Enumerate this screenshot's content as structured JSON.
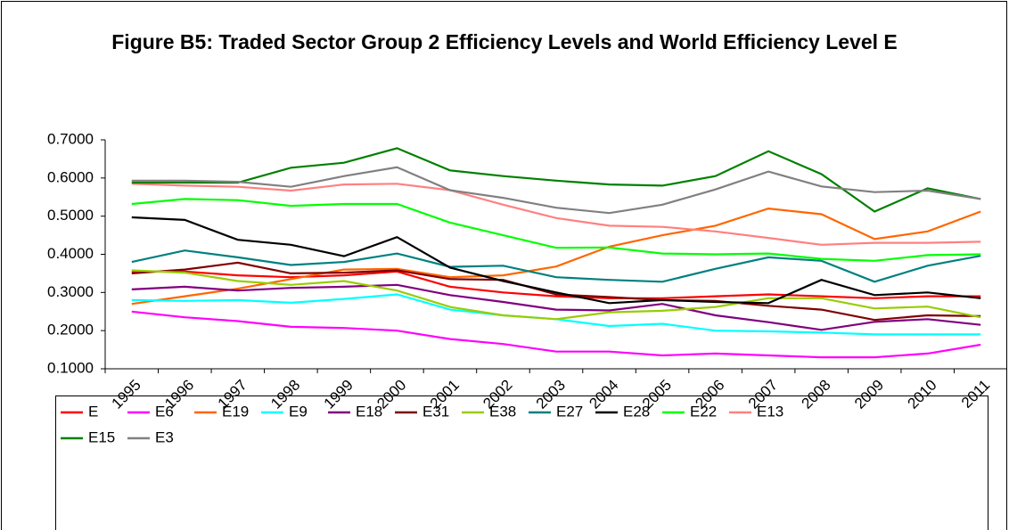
{
  "chart_data": {
    "type": "line",
    "title": "Figure B5: Traded Sector Group 2 Efficiency Levels and World Efficiency Level E",
    "categories": [
      "1995",
      "1996",
      "1997",
      "1998",
      "1999",
      "2000",
      "2001",
      "2002",
      "2003",
      "2004",
      "2005",
      "2006",
      "2007",
      "2008",
      "2009",
      "2010",
      "2011"
    ],
    "ylim": [
      0.1,
      0.7
    ],
    "yticks": [
      {
        "value": 0.1,
        "label": "0.1000"
      },
      {
        "value": 0.2,
        "label": "0.2000"
      },
      {
        "value": 0.3,
        "label": "0.3000"
      },
      {
        "value": 0.4,
        "label": "0.4000"
      },
      {
        "value": 0.5,
        "label": "0.5000"
      },
      {
        "value": 0.6,
        "label": "0.6000"
      },
      {
        "value": 0.7,
        "label": "0.7000"
      }
    ],
    "grid": false,
    "legend": "bottom",
    "series": [
      {
        "name": "E",
        "color": "#ff0000",
        "values": [
          0.355,
          0.355,
          0.345,
          0.34,
          0.345,
          0.355,
          0.315,
          0.3,
          0.29,
          0.285,
          0.285,
          0.29,
          0.295,
          0.29,
          0.285,
          0.29,
          0.29
        ]
      },
      {
        "name": "E6",
        "color": "#ff00ff",
        "values": [
          0.25,
          0.235,
          0.225,
          0.21,
          0.207,
          0.2,
          0.178,
          0.165,
          0.145,
          0.145,
          0.135,
          0.14,
          0.135,
          0.13,
          0.13,
          0.14,
          0.163
        ]
      },
      {
        "name": "E19",
        "color": "#ff6600",
        "values": [
          0.27,
          0.29,
          0.31,
          0.335,
          0.36,
          0.362,
          0.34,
          0.345,
          0.368,
          0.42,
          0.45,
          0.475,
          0.52,
          0.505,
          0.44,
          0.46,
          0.512
        ]
      },
      {
        "name": "E9",
        "color": "#00ffff",
        "values": [
          0.28,
          0.278,
          0.28,
          0.273,
          0.283,
          0.295,
          0.255,
          0.24,
          0.23,
          0.212,
          0.218,
          0.2,
          0.198,
          0.195,
          0.19,
          0.19,
          0.19
        ]
      },
      {
        "name": "E18",
        "color": "#800080",
        "values": [
          0.308,
          0.315,
          0.305,
          0.312,
          0.315,
          0.32,
          0.293,
          0.275,
          0.255,
          0.253,
          0.27,
          0.24,
          0.222,
          0.202,
          0.223,
          0.23,
          0.215
        ]
      },
      {
        "name": "E31",
        "color": "#800000",
        "values": [
          0.35,
          0.36,
          0.378,
          0.35,
          0.352,
          0.358,
          0.335,
          0.333,
          0.295,
          0.288,
          0.28,
          0.278,
          0.265,
          0.255,
          0.228,
          0.24,
          0.238
        ]
      },
      {
        "name": "E38",
        "color": "#99cc00",
        "values": [
          0.358,
          0.352,
          0.33,
          0.32,
          0.33,
          0.305,
          0.262,
          0.24,
          0.23,
          0.248,
          0.252,
          0.262,
          0.285,
          0.285,
          0.258,
          0.263,
          0.235
        ]
      },
      {
        "name": "E27",
        "color": "#008080",
        "values": [
          0.38,
          0.41,
          0.392,
          0.372,
          0.38,
          0.402,
          0.367,
          0.37,
          0.34,
          0.333,
          0.328,
          0.362,
          0.392,
          0.383,
          0.328,
          0.37,
          0.396
        ]
      },
      {
        "name": "E28",
        "color": "#000000",
        "values": [
          0.497,
          0.49,
          0.438,
          0.425,
          0.395,
          0.445,
          0.365,
          0.33,
          0.3,
          0.272,
          0.28,
          0.275,
          0.272,
          0.333,
          0.293,
          0.3,
          0.285
        ]
      },
      {
        "name": "E22",
        "color": "#00ff00",
        "values": [
          0.532,
          0.545,
          0.542,
          0.527,
          0.532,
          0.532,
          0.483,
          0.45,
          0.417,
          0.418,
          0.402,
          0.4,
          0.402,
          0.388,
          0.383,
          0.398,
          0.4
        ]
      },
      {
        "name": "E13",
        "color": "#ff8080",
        "values": [
          0.585,
          0.58,
          0.577,
          0.567,
          0.583,
          0.585,
          0.568,
          0.53,
          0.495,
          0.475,
          0.472,
          0.46,
          0.443,
          0.425,
          0.43,
          0.43,
          0.433
        ]
      },
      {
        "name": "E15",
        "color": "#008000",
        "values": [
          0.588,
          0.588,
          0.588,
          0.627,
          0.64,
          0.678,
          0.62,
          0.605,
          0.593,
          0.583,
          0.58,
          0.605,
          0.67,
          0.61,
          0.512,
          0.573,
          0.545
        ]
      },
      {
        "name": "E3",
        "color": "#808080",
        "values": [
          0.593,
          0.593,
          0.59,
          0.577,
          0.605,
          0.628,
          0.568,
          0.548,
          0.522,
          0.508,
          0.53,
          0.57,
          0.617,
          0.578,
          0.563,
          0.567,
          0.545
        ]
      }
    ]
  }
}
